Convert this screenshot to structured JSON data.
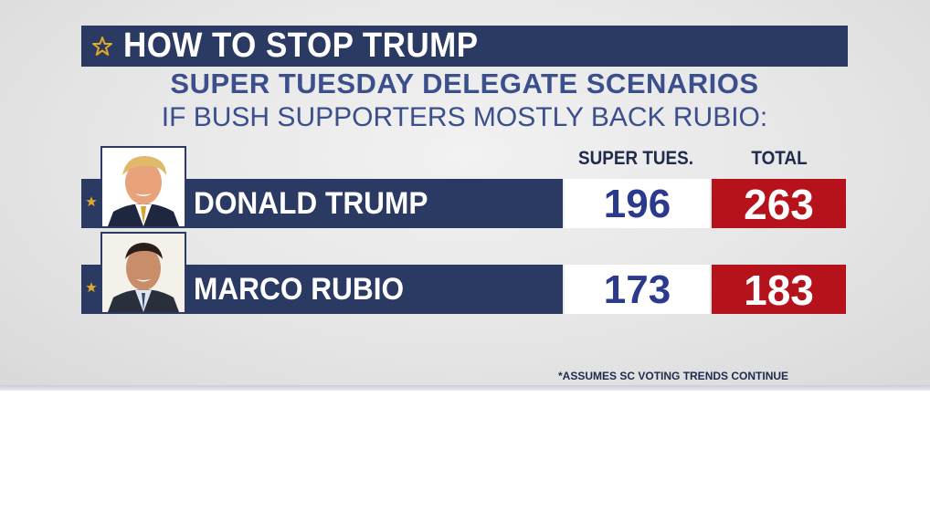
{
  "header": {
    "title": "HOW TO STOP TRUMP",
    "subtitle": "SUPER TUESDAY DELEGATE SCENARIOS",
    "scenario": "IF BUSH SUPPORTERS MOSTLY BACK RUBIO:"
  },
  "table": {
    "columns": {
      "super": "SUPER TUES.",
      "total": "TOTAL"
    },
    "rows": [
      {
        "name": "DONALD TRUMP",
        "super_tues": "196",
        "total": "263"
      },
      {
        "name": "MARCO RUBIO",
        "super_tues": "173",
        "total": "183"
      }
    ]
  },
  "footnote": "*ASSUMES SC VOTING TRENDS CONTINUE",
  "colors": {
    "navy": "#2b3a63",
    "accent_blue": "#3b4f8c",
    "red": "#b5121b",
    "star_gold": "#e0a92a"
  },
  "icons": {
    "title": "star-outline-icon",
    "row": "star-icon"
  }
}
